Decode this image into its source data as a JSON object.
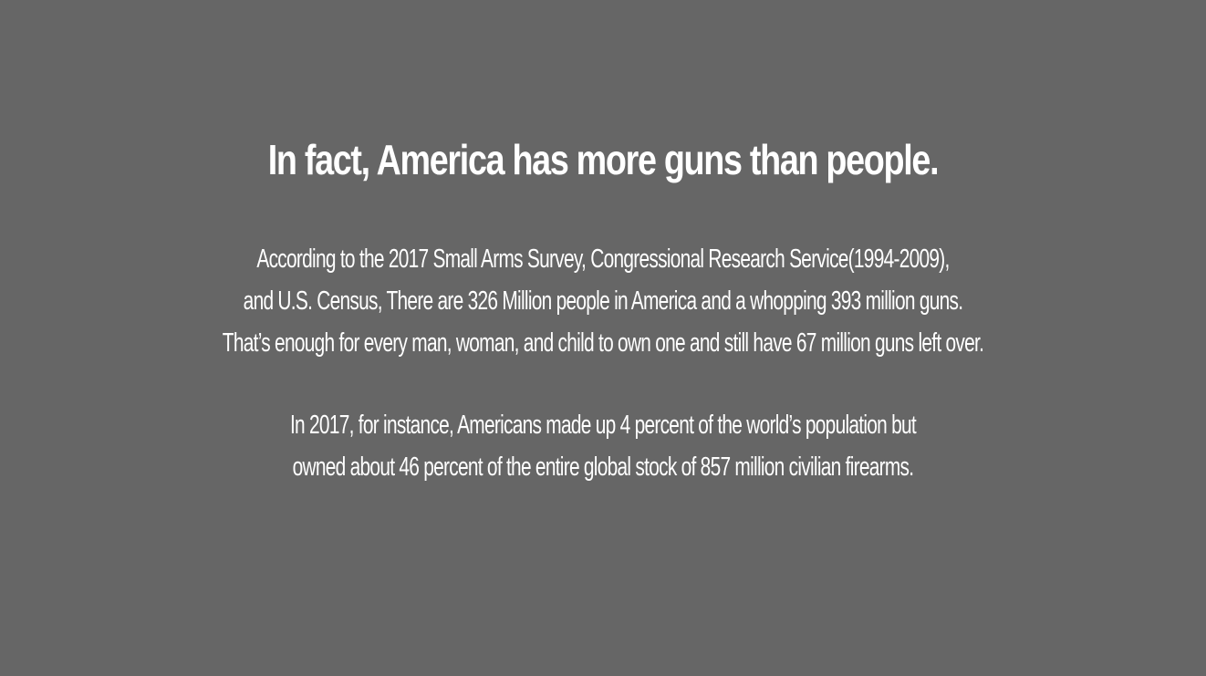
{
  "slide": {
    "heading": "In fact, America has more guns than people.",
    "paragraph_1": [
      "According to the 2017 Small Arms Survey, Congressional Research Service(1994-2009),",
      "and U.S. Census, There are 326 Million people in America and a whopping 393 million guns.",
      "That’s enough for every man, woman, and child to own one and still have 67 million guns left over."
    ],
    "paragraph_2": [
      "In 2017, for instance, Americans made up 4 percent of the world’s population but",
      "owned about 46 percent of the entire global stock of 857 million civilian firearms."
    ]
  },
  "colors": {
    "background": "#666666",
    "text": "#ffffff"
  }
}
